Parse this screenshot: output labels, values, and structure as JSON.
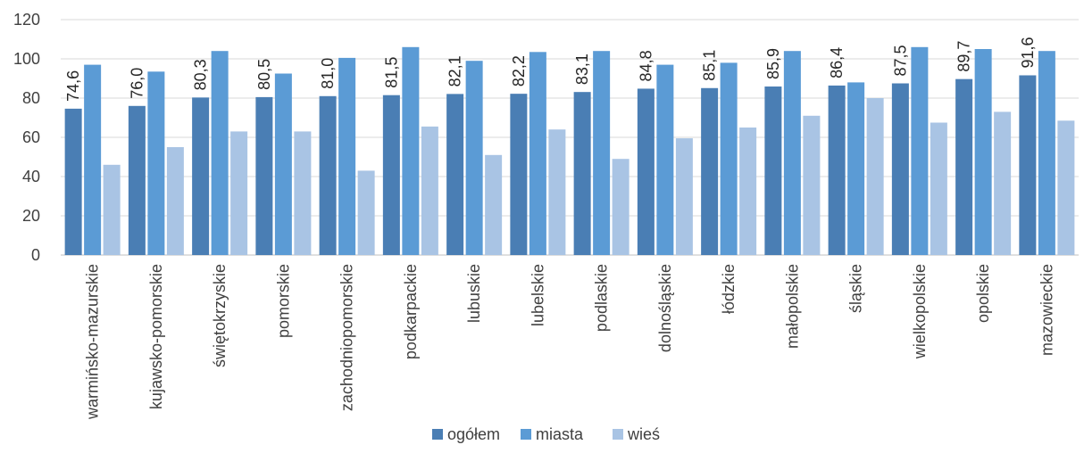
{
  "chart_data": {
    "type": "bar",
    "categories": [
      "warmińsko-mazurskie",
      "kujawsko-pomorskie",
      "świętokrzyskie",
      "pomorskie",
      "zachodniopomorskie",
      "podkarpackie",
      "lubuskie",
      "lubelskie",
      "podlaskie",
      "dolnośląskie",
      "łódzkie",
      "małopolskie",
      "śląskie",
      "wielkopolskie",
      "opolskie",
      "mazowieckie"
    ],
    "series": [
      {
        "name": "ogółem",
        "color": "#4a7eb4",
        "values": [
          74.6,
          76.0,
          80.3,
          80.5,
          81.0,
          81.5,
          82.1,
          82.2,
          83.1,
          84.8,
          85.1,
          85.9,
          86.4,
          87.5,
          89.7,
          91.6
        ],
        "labels": [
          "74,6",
          "76,0",
          "80,3",
          "80,5",
          "81,0",
          "81,5",
          "82,1",
          "82,2",
          "83,1",
          "84,8",
          "85,1",
          "85,9",
          "86,4",
          "87,5",
          "89,7",
          "91,6"
        ]
      },
      {
        "name": "miasta",
        "color": "#5b9bd5",
        "values": [
          97,
          93.5,
          104,
          92.5,
          100.5,
          106,
          99,
          103.5,
          104,
          97,
          98,
          104,
          88,
          106,
          105,
          104
        ]
      },
      {
        "name": "wieś",
        "color": "#a9c4e4",
        "values": [
          46,
          55,
          63,
          63,
          43,
          65.5,
          51,
          64,
          49,
          59.5,
          65,
          71,
          80,
          67.5,
          73,
          68.5
        ]
      }
    ],
    "ylim": [
      0,
      120
    ],
    "yticks": [
      "0",
      "20",
      "40",
      "60",
      "80",
      "100",
      "120"
    ],
    "grid": true,
    "legend_position": "bottom"
  }
}
